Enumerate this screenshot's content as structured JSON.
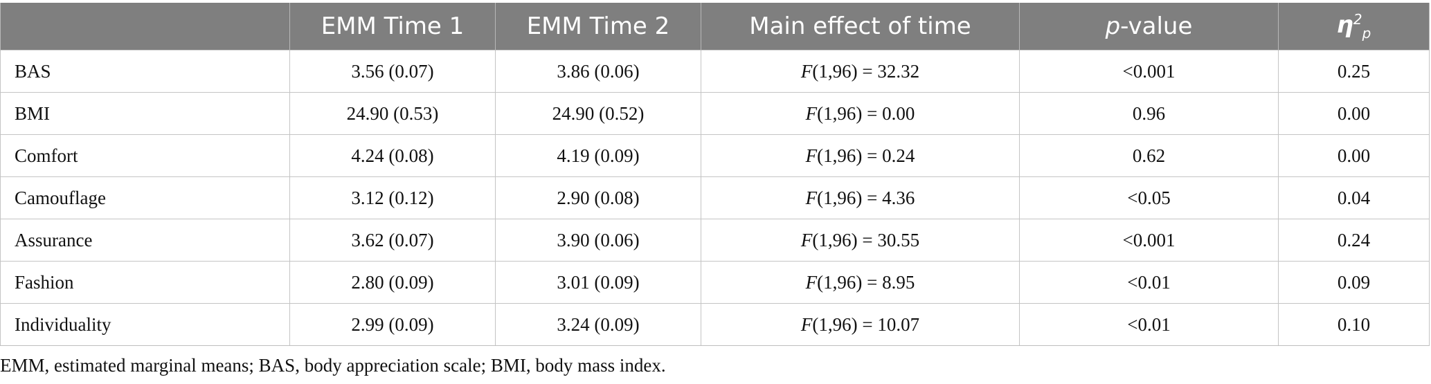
{
  "table": {
    "headers": {
      "row_label": "",
      "emm_time1": "EMM Time 1",
      "emm_time2": "EMM Time 2",
      "main_effect": "Main effect of time",
      "p_value_italic": "p",
      "p_value_suffix": "-value",
      "eta_symbol": "η",
      "eta_sup": "2",
      "eta_sub": "p"
    },
    "rows": [
      {
        "label": "BAS",
        "time1": "3.56 (0.07)",
        "time2": "3.86 (0.06)",
        "f_symbol": "F",
        "f_rest": "(1,96) = 32.32",
        "p": "<0.001",
        "eta": "0.25"
      },
      {
        "label": "BMI",
        "time1": "24.90 (0.53)",
        "time2": "24.90 (0.52)",
        "f_symbol": "F",
        "f_rest": "(1,96) = 0.00",
        "p": "0.96",
        "eta": "0.00"
      },
      {
        "label": "Comfort",
        "time1": "4.24 (0.08)",
        "time2": "4.19 (0.09)",
        "f_symbol": "F",
        "f_rest": "(1,96) = 0.24",
        "p": "0.62",
        "eta": "0.00"
      },
      {
        "label": "Camouflage",
        "time1": "3.12 (0.12)",
        "time2": "2.90 (0.08)",
        "f_symbol": "F",
        "f_rest": "(1,96) = 4.36",
        "p": "<0.05",
        "eta": "0.04"
      },
      {
        "label": "Assurance",
        "time1": "3.62 (0.07)",
        "time2": "3.90 (0.06)",
        "f_symbol": "F",
        "f_rest": "(1,96) = 30.55",
        "p": "<0.001",
        "eta": "0.24"
      },
      {
        "label": "Fashion",
        "time1": "2.80 (0.09)",
        "time2": "3.01 (0.09)",
        "f_symbol": "F",
        "f_rest": "(1,96) = 8.95",
        "p": "<0.01",
        "eta": "0.09"
      },
      {
        "label": "Individuality",
        "time1": "2.99 (0.09)",
        "time2": "3.24 (0.09)",
        "f_symbol": "F",
        "f_rest": "(1,96) = 10.07",
        "p": "<0.01",
        "eta": "0.10"
      }
    ]
  },
  "footnote": "EMM, estimated marginal means; BAS, body appreciation scale; BMI, body mass index."
}
